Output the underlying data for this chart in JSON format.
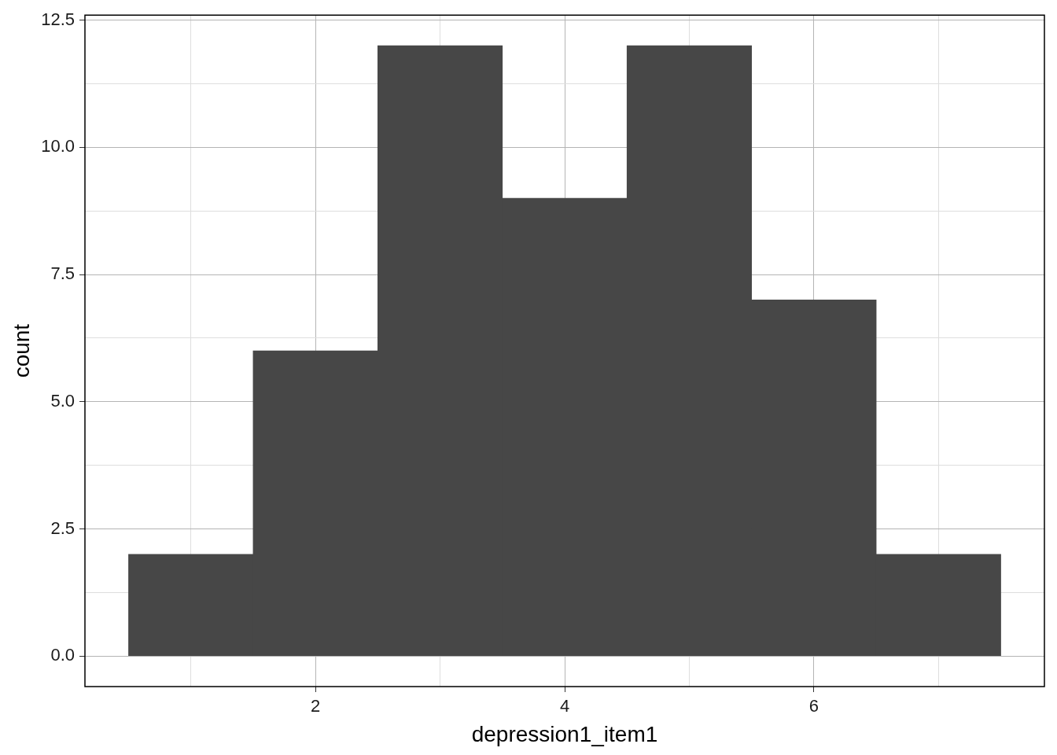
{
  "chart_data": {
    "type": "histogram",
    "xlabel": "depression1_item1",
    "ylabel": "count",
    "bins": [
      0.5,
      1.5,
      2.5,
      3.5,
      4.5,
      5.5,
      6.5,
      7.5
    ],
    "values": [
      2,
      6,
      12,
      9,
      12,
      7,
      2
    ],
    "color": "#474747",
    "xlim": [
      0.15,
      7.85
    ],
    "ylim": [
      -0.6,
      12.6
    ],
    "xticks": [
      {
        "value": 1,
        "label": null
      },
      2,
      {
        "value": 3,
        "label": null
      },
      4,
      {
        "value": 5,
        "label": null
      },
      6,
      {
        "value": 7,
        "label": null
      }
    ],
    "yticks": [
      {
        "value": 0,
        "label": "0.0"
      },
      {
        "value": 1.25,
        "label": null
      },
      {
        "value": 2.5,
        "label": "2.5"
      },
      {
        "value": 3.75,
        "label": null
      },
      {
        "value": 5,
        "label": "5.0"
      },
      {
        "value": 6.25,
        "label": null
      },
      {
        "value": 7.5,
        "label": "7.5"
      },
      {
        "value": 8.75,
        "label": null
      },
      {
        "value": 10,
        "label": "10.0"
      },
      {
        "value": 11.25,
        "label": null
      },
      {
        "value": 12.5,
        "label": "12.5"
      }
    ],
    "grid": true
  }
}
